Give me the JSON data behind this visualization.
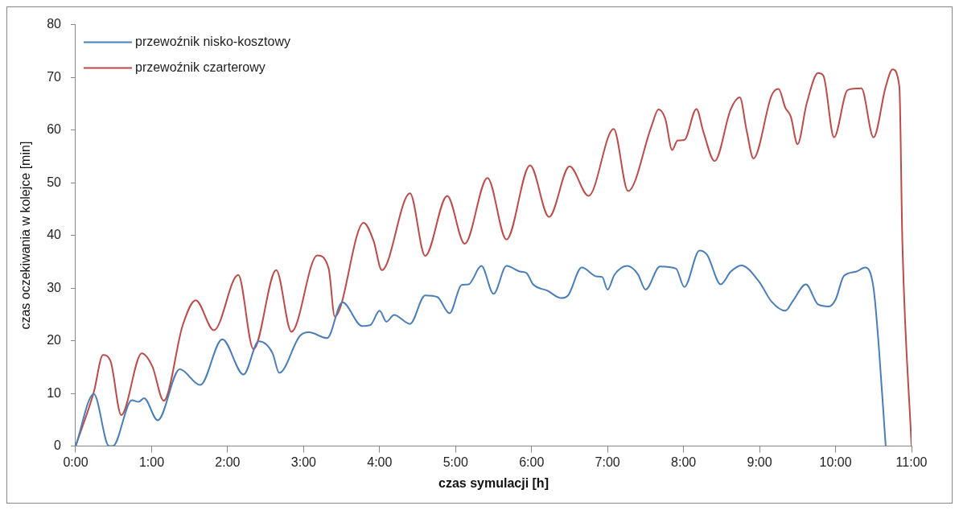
{
  "chart_data": {
    "type": "line",
    "xlabel": "czas symulacji [h]",
    "ylabel": "czas oczekiwania w kolejce [min]",
    "xlim": [
      0,
      11
    ],
    "ylim": [
      0,
      80
    ],
    "xticks": [
      {
        "value": 0,
        "label": "0:00"
      },
      {
        "value": 1,
        "label": "1:00"
      },
      {
        "value": 2,
        "label": "2:00"
      },
      {
        "value": 3,
        "label": "3:00"
      },
      {
        "value": 4,
        "label": "4:00"
      },
      {
        "value": 5,
        "label": "5:00"
      },
      {
        "value": 6,
        "label": "6:00"
      },
      {
        "value": 7,
        "label": "7:00"
      },
      {
        "value": 8,
        "label": "8:00"
      },
      {
        "value": 9,
        "label": "9:00"
      },
      {
        "value": 10,
        "label": "10:00"
      },
      {
        "value": 11,
        "label": "11:00"
      }
    ],
    "yticks": [
      0,
      10,
      20,
      30,
      40,
      50,
      60,
      70,
      80
    ],
    "grid": false,
    "legend": "top left",
    "marker": "none",
    "line_style": "solid",
    "series": [
      {
        "name": "przewoźnik nisko-kosztowy",
        "color": "#4a7ebb",
        "x": [
          0,
          0.24,
          0.44,
          0.49,
          0.74,
          0.83,
          0.9,
          1.08,
          1.37,
          1.64,
          1.93,
          2.21,
          2.41,
          2.59,
          2.68,
          2.95,
          3.07,
          3.31,
          3.51,
          3.77,
          3.88,
          4.0,
          4.09,
          4.19,
          4.4,
          4.6,
          4.76,
          4.92,
          5.08,
          5.17,
          5.34,
          5.5,
          5.67,
          5.86,
          5.93,
          6.02,
          6.21,
          6.39,
          6.48,
          6.66,
          6.86,
          6.93,
          7.0,
          7.09,
          7.26,
          7.4,
          7.5,
          7.69,
          7.9,
          8.01,
          8.21,
          8.31,
          8.49,
          8.62,
          8.76,
          8.99,
          9.16,
          9.34,
          9.44,
          9.61,
          9.77,
          9.91,
          10.0,
          10.11,
          10.27,
          10.39,
          10.5,
          10.57,
          10.66
        ],
        "values": [
          0,
          9.9,
          0,
          0,
          8.7,
          8.4,
          9.1,
          4.9,
          14.6,
          11.6,
          20.3,
          13.6,
          19.9,
          17.7,
          13.9,
          20.9,
          21.6,
          20.5,
          27.3,
          22.8,
          23,
          25.7,
          23.6,
          24.9,
          23.2,
          28.6,
          28.3,
          25.2,
          30.6,
          30.7,
          34.2,
          28.9,
          34.2,
          33.1,
          32.9,
          30.7,
          29.5,
          28.1,
          28.6,
          33.9,
          32.2,
          32.1,
          29.7,
          32.5,
          34.2,
          32.6,
          29.7,
          34.1,
          33.7,
          30.2,
          37.1,
          36.3,
          30.7,
          33.1,
          34.3,
          31.3,
          27.4,
          25.7,
          27.6,
          30.7,
          26.9,
          26.5,
          27.8,
          32.3,
          33.1,
          33.9,
          30.0,
          18.8,
          0
        ]
      },
      {
        "name": "przewoźnik czarterowy",
        "color": "#be4b48",
        "x": [
          0,
          0.24,
          0.36,
          0.46,
          0.6,
          0.87,
          1.01,
          1.16,
          1.41,
          1.58,
          1.82,
          2.14,
          2.34,
          2.64,
          2.84,
          3.18,
          3.33,
          3.41,
          3.79,
          3.92,
          4.03,
          4.4,
          4.6,
          4.89,
          5.12,
          5.42,
          5.67,
          5.98,
          6.23,
          6.5,
          6.75,
          7.08,
          7.27,
          7.58,
          7.67,
          7.76,
          7.85,
          7.92,
          8.01,
          8.17,
          8.26,
          8.41,
          8.62,
          8.74,
          8.83,
          8.92,
          9.16,
          9.25,
          9.34,
          9.41,
          9.5,
          9.62,
          9.77,
          9.84,
          9.98,
          10.16,
          10.34,
          10.5,
          10.66,
          10.75,
          10.84,
          10.88,
          11.0
        ],
        "values": [
          0,
          10.3,
          17.3,
          16.1,
          5.9,
          17.6,
          15.1,
          8.6,
          23.0,
          27.7,
          22.0,
          32.5,
          18.4,
          33.4,
          21.7,
          36.2,
          33.7,
          24.6,
          42.4,
          39.0,
          33.4,
          48.0,
          36.1,
          47.5,
          38.4,
          50.9,
          39.2,
          53.3,
          43.5,
          53.1,
          47.5,
          60.2,
          48.4,
          60.8,
          63.9,
          62.1,
          56.2,
          58.0,
          58.1,
          64.0,
          59.7,
          54.1,
          63.9,
          66.2,
          59.9,
          54.6,
          66.6,
          67.8,
          64.2,
          62.6,
          57.3,
          65.0,
          70.8,
          70.3,
          58.6,
          67.6,
          67.9,
          58.6,
          68.2,
          71.5,
          68.2,
          38.4,
          0
        ]
      }
    ]
  }
}
